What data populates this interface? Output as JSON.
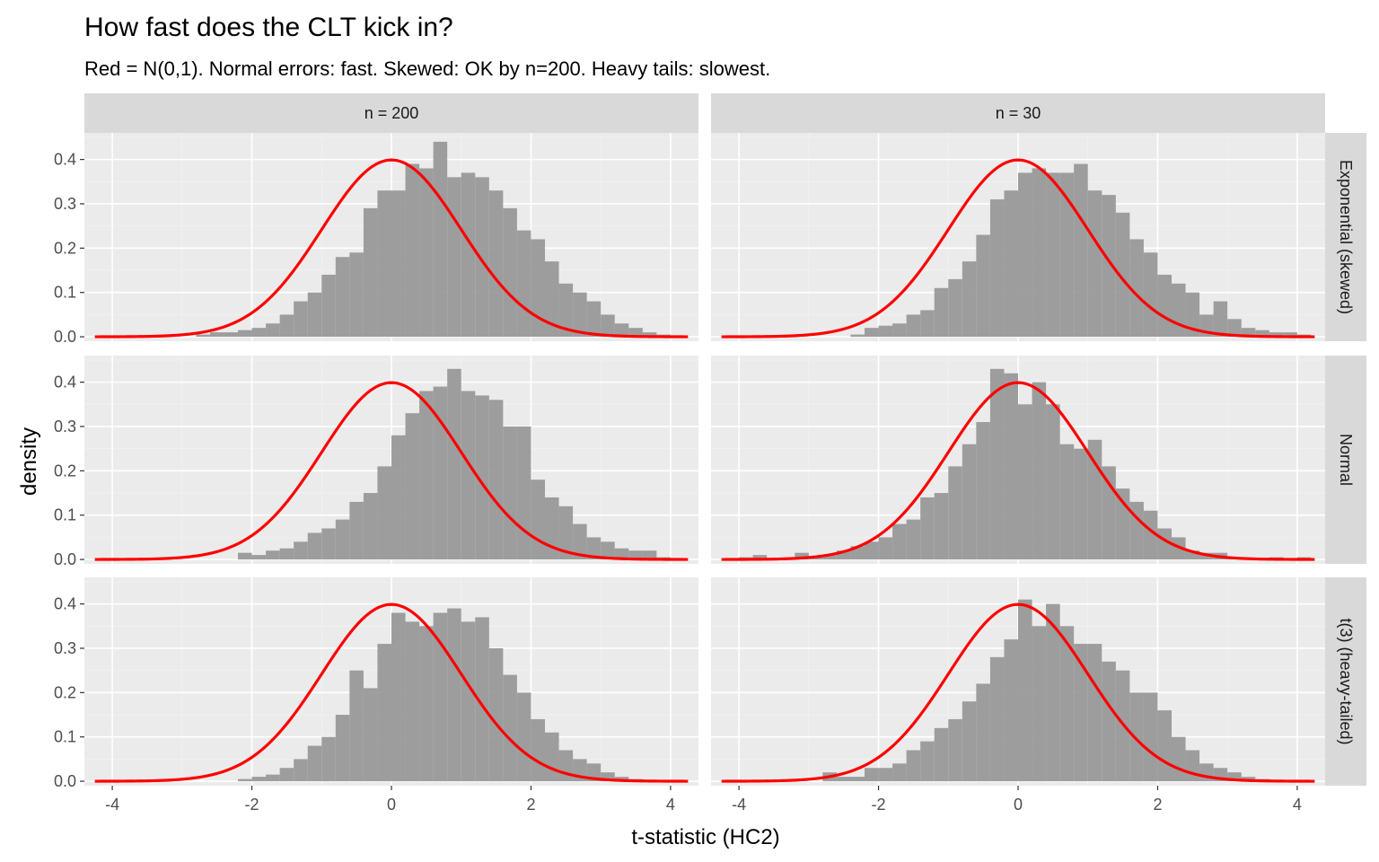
{
  "chart_data": {
    "type": "histogram-facet",
    "title": "How fast does the CLT kick in?",
    "subtitle": "Red = N(0,1). Normal errors: fast. Skewed: OK by n=200. Heavy tails: slowest.",
    "xlabel": "t-statistic (HC2)",
    "ylabel": "density",
    "xlim": [
      -4.4,
      4.4
    ],
    "ylim": [
      -0.01,
      0.46
    ],
    "x_ticks": [
      -4,
      -2,
      0,
      2,
      4
    ],
    "x_tick_labels": [
      "-4",
      "-2",
      "0",
      "2",
      "4"
    ],
    "y_ticks": [
      0.0,
      0.1,
      0.2,
      0.3,
      0.4
    ],
    "y_tick_labels": [
      "0.0",
      "0.1",
      "0.2",
      "0.3",
      "0.4"
    ],
    "grid": true,
    "bar_color": "#999999",
    "curve_color": "#ff0000",
    "panel_background": "#ebebeb",
    "strip_background": "#d9d9d9",
    "reference_curve": "N(0,1)",
    "bin_width": 0.2,
    "bin_start": -4.4,
    "col_strips": [
      "n = 200",
      "n = 30"
    ],
    "row_strips": [
      "Exponential (skewed)",
      "Normal",
      "t(3) (heavy-tailed)"
    ],
    "panels": [
      {
        "row": 0,
        "col": 0,
        "densities": [
          0,
          0,
          0,
          0,
          0,
          0,
          0,
          0,
          0.005,
          0.01,
          0.01,
          0.015,
          0.02,
          0.03,
          0.05,
          0.08,
          0.1,
          0.14,
          0.18,
          0.19,
          0.29,
          0.33,
          0.33,
          0.39,
          0.38,
          0.44,
          0.36,
          0.37,
          0.36,
          0.33,
          0.29,
          0.24,
          0.22,
          0.17,
          0.12,
          0.1,
          0.08,
          0.05,
          0.03,
          0.02,
          0.01,
          0.005,
          0,
          0,
          0
        ]
      },
      {
        "row": 0,
        "col": 1,
        "densities": [
          0,
          0,
          0,
          0,
          0,
          0,
          0,
          0,
          0,
          0,
          0.005,
          0.02,
          0.025,
          0.03,
          0.05,
          0.06,
          0.11,
          0.13,
          0.17,
          0.23,
          0.31,
          0.33,
          0.37,
          0.38,
          0.37,
          0.37,
          0.39,
          0.33,
          0.32,
          0.28,
          0.22,
          0.19,
          0.14,
          0.12,
          0.1,
          0.05,
          0.08,
          0.04,
          0.02,
          0.015,
          0.01,
          0.01,
          0.005,
          0,
          0,
          0
        ]
      },
      {
        "row": 1,
        "col": 0,
        "densities": [
          0,
          0,
          0,
          0,
          0,
          0,
          0,
          0,
          0,
          0,
          0,
          0.015,
          0.01,
          0.02,
          0.025,
          0.04,
          0.06,
          0.07,
          0.09,
          0.13,
          0.15,
          0.21,
          0.28,
          0.33,
          0.38,
          0.39,
          0.43,
          0.38,
          0.37,
          0.36,
          0.3,
          0.3,
          0.18,
          0.14,
          0.12,
          0.08,
          0.05,
          0.04,
          0.025,
          0.02,
          0.02,
          0.005,
          0,
          0,
          0
        ]
      },
      {
        "row": 1,
        "col": 1,
        "densities": [
          0,
          0,
          0.005,
          0.01,
          0,
          0,
          0.015,
          0.005,
          0.01,
          0.02,
          0.03,
          0.04,
          0.05,
          0.08,
          0.09,
          0.14,
          0.15,
          0.21,
          0.26,
          0.31,
          0.43,
          0.42,
          0.35,
          0.4,
          0.35,
          0.26,
          0.25,
          0.27,
          0.21,
          0.16,
          0.13,
          0.11,
          0.07,
          0.05,
          0.02,
          0.015,
          0.015,
          0.005,
          0,
          0,
          0.005,
          0,
          0.005,
          0,
          0,
          0
        ]
      },
      {
        "row": 2,
        "col": 0,
        "densities": [
          0,
          0,
          0,
          0,
          0,
          0,
          0,
          0,
          0,
          0,
          0,
          0.005,
          0.01,
          0.015,
          0.03,
          0.05,
          0.08,
          0.1,
          0.15,
          0.25,
          0.21,
          0.31,
          0.38,
          0.36,
          0.35,
          0.38,
          0.39,
          0.36,
          0.37,
          0.3,
          0.24,
          0.2,
          0.14,
          0.11,
          0.07,
          0.05,
          0.04,
          0.02,
          0.01,
          0.005,
          0,
          0,
          0,
          0,
          0
        ]
      },
      {
        "row": 2,
        "col": 1,
        "densities": [
          0,
          0,
          0,
          0,
          0,
          0,
          0,
          0,
          0.02,
          0.01,
          0.01,
          0.03,
          0.03,
          0.04,
          0.07,
          0.09,
          0.12,
          0.14,
          0.18,
          0.22,
          0.28,
          0.32,
          0.41,
          0.35,
          0.4,
          0.35,
          0.31,
          0.31,
          0.27,
          0.25,
          0.2,
          0.2,
          0.16,
          0.1,
          0.07,
          0.04,
          0.03,
          0.02,
          0.01,
          0.005,
          0,
          0,
          0,
          0,
          0
        ]
      }
    ]
  }
}
